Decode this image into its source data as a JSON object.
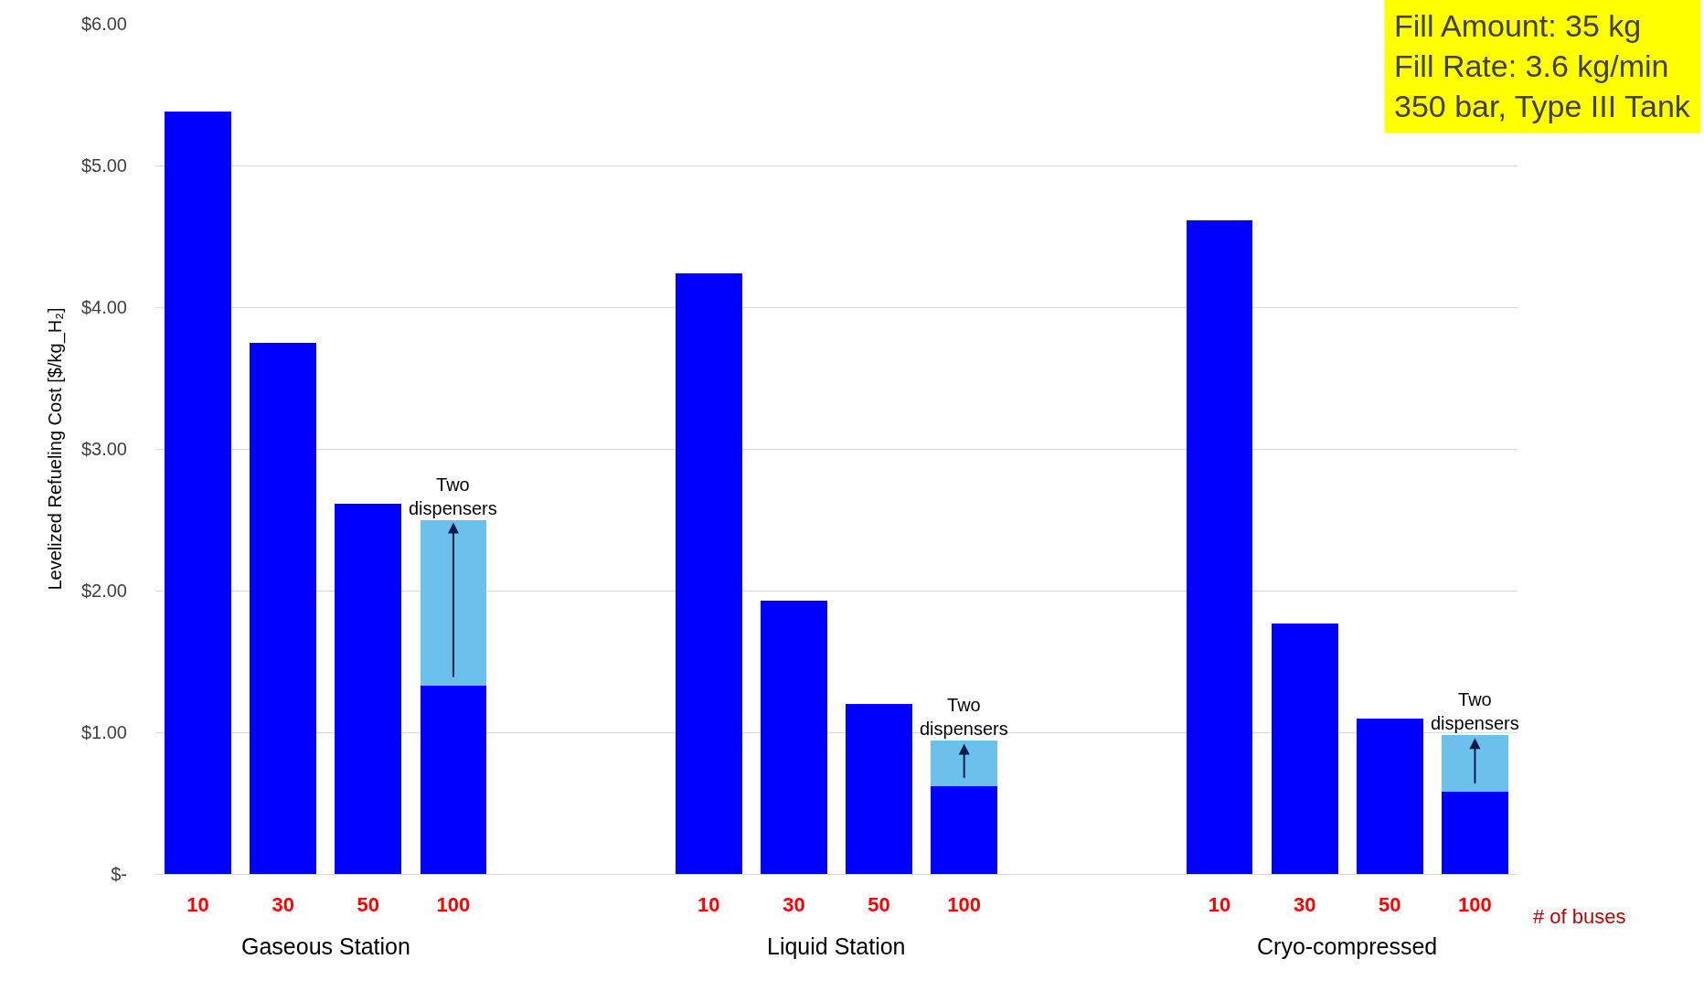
{
  "chart_data": {
    "type": "bar",
    "stacked": true,
    "ylabel": "Levelized Refueling Cost [$/kg_H₂]",
    "xlabel": "# of buses",
    "categories": [
      "10",
      "30",
      "50",
      "100",
      null,
      null,
      "10",
      "30",
      "50",
      "100",
      null,
      null,
      "10",
      "30",
      "50",
      "100"
    ],
    "series": [
      {
        "color": "#0000ff",
        "values": [
          5.38,
          3.75,
          2.61,
          1.33,
          null,
          null,
          4.24,
          1.93,
          1.2,
          0.62,
          null,
          null,
          4.61,
          1.77,
          1.1,
          0.58
        ]
      },
      {
        "color": "#6cc0ec",
        "values": [
          null,
          null,
          null,
          1.17,
          null,
          null,
          null,
          null,
          null,
          0.32,
          null,
          null,
          null,
          null,
          null,
          0.4
        ]
      }
    ],
    "ylim": [
      0,
      6
    ],
    "yticks": [
      {
        "value": 0,
        "label": "$-"
      },
      {
        "value": 1,
        "label": "$1.00"
      },
      {
        "value": 2,
        "label": "$2.00"
      },
      {
        "value": 3,
        "label": "$3.00"
      },
      {
        "value": 4,
        "label": "$4.00"
      },
      {
        "value": 5,
        "label": "$5.00"
      },
      {
        "value": 6,
        "label": "$6.00"
      }
    ],
    "grid": "y",
    "annotations": [
      "Gaseous Station",
      "Liquid Station",
      "Cryo-compressed",
      "Fill Amount: 35 kg\nFill Rate: 3.6 kg/min\n350 bar, Type III Tank",
      {
        "text": "Two\ndispensers",
        "y": 2.5
      },
      {
        "text": "Two\ndispensers",
        "y": 0.94
      },
      {
        "text": "Two\ndispensers",
        "y": 0.98
      }
    ]
  }
}
